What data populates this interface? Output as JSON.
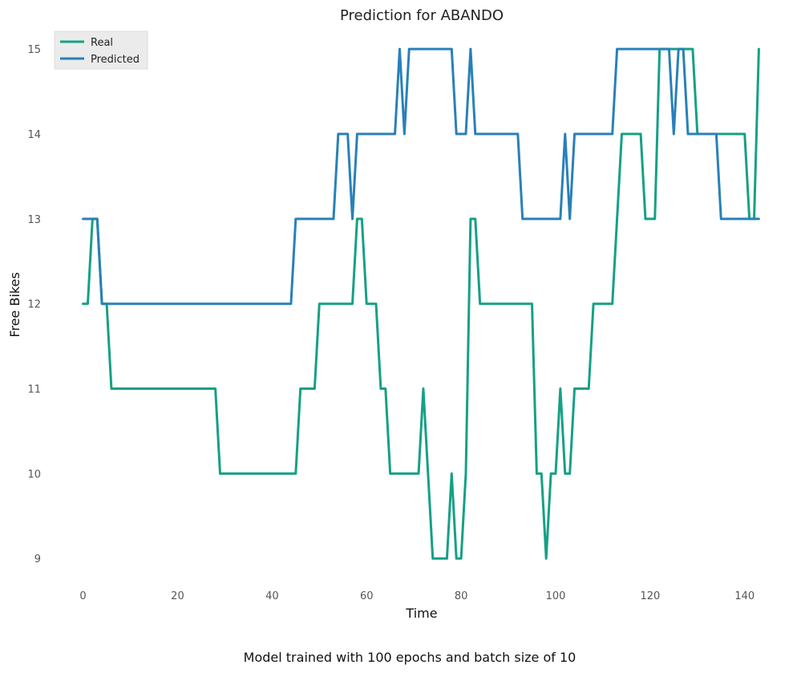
{
  "chart_data": {
    "type": "line",
    "title": "Prediction for ABANDO",
    "xlabel": "Time",
    "ylabel": "Free Bikes",
    "caption": "Model trained with 100 epochs and batch size of 10",
    "xlim": [
      -4,
      147
    ],
    "ylim": [
      8.7,
      15.2
    ],
    "xticks": [
      0,
      20,
      40,
      60,
      80,
      100,
      120,
      140
    ],
    "yticks": [
      9,
      10,
      11,
      12,
      13,
      14,
      15
    ],
    "grid": false,
    "legend_position": "top-left",
    "series": [
      {
        "name": "Real",
        "color": "#16a085",
        "x": [
          0,
          1,
          2,
          3,
          4,
          5,
          6,
          7,
          8,
          9,
          10,
          11,
          12,
          13,
          14,
          15,
          16,
          17,
          18,
          19,
          20,
          21,
          22,
          23,
          24,
          25,
          26,
          27,
          28,
          29,
          30,
          31,
          32,
          33,
          34,
          35,
          36,
          37,
          38,
          39,
          40,
          41,
          42,
          43,
          44,
          45,
          46,
          47,
          48,
          49,
          50,
          51,
          52,
          53,
          54,
          55,
          56,
          57,
          58,
          59,
          60,
          61,
          62,
          63,
          64,
          65,
          66,
          67,
          68,
          69,
          70,
          71,
          72,
          73,
          74,
          75,
          76,
          77,
          78,
          79,
          80,
          81,
          82,
          83,
          84,
          85,
          86,
          87,
          88,
          89,
          90,
          91,
          92,
          93,
          94,
          95,
          96,
          97,
          98,
          99,
          100,
          101,
          102,
          103,
          104,
          105,
          106,
          107,
          108,
          109,
          110,
          111,
          112,
          113,
          114,
          115,
          116,
          117,
          118,
          119,
          120,
          121,
          122,
          123,
          124,
          125,
          126,
          127,
          128,
          129,
          130,
          131,
          132,
          133,
          134,
          135,
          136,
          137,
          138,
          139,
          140,
          141,
          142,
          143
        ],
        "y": [
          12,
          12,
          13,
          13,
          12,
          12,
          11,
          11,
          11,
          11,
          11,
          11,
          11,
          11,
          11,
          11,
          11,
          11,
          11,
          11,
          11,
          11,
          11,
          11,
          11,
          11,
          11,
          11,
          11,
          10,
          10,
          10,
          10,
          10,
          10,
          10,
          10,
          10,
          10,
          10,
          10,
          10,
          10,
          10,
          10,
          10,
          11,
          11,
          11,
          11,
          12,
          12,
          12,
          12,
          12,
          12,
          12,
          12,
          13,
          13,
          12,
          12,
          12,
          11,
          11,
          10,
          10,
          10,
          10,
          10,
          10,
          10,
          11,
          10,
          9,
          9,
          9,
          9,
          10,
          9,
          9,
          10,
          13,
          13,
          12,
          12,
          12,
          12,
          12,
          12,
          12,
          12,
          12,
          12,
          12,
          12,
          10,
          10,
          9,
          10,
          10,
          11,
          10,
          10,
          11,
          11,
          11,
          11,
          12,
          12,
          12,
          12,
          12,
          13,
          14,
          14,
          14,
          14,
          14,
          13,
          13,
          13,
          15,
          15,
          15,
          15,
          15,
          15,
          15,
          15,
          14,
          14,
          14,
          14,
          14,
          14,
          14,
          14,
          14,
          14,
          14,
          13,
          13,
          15
        ]
      },
      {
        "name": "Predicted",
        "color": "#2980b9",
        "x": [
          0,
          1,
          2,
          3,
          4,
          5,
          6,
          7,
          8,
          9,
          10,
          11,
          12,
          13,
          14,
          15,
          16,
          17,
          18,
          19,
          20,
          21,
          22,
          23,
          24,
          25,
          26,
          27,
          28,
          29,
          30,
          31,
          32,
          33,
          34,
          35,
          36,
          37,
          38,
          39,
          40,
          41,
          42,
          43,
          44,
          45,
          46,
          47,
          48,
          49,
          50,
          51,
          52,
          53,
          54,
          55,
          56,
          57,
          58,
          59,
          60,
          61,
          62,
          63,
          64,
          65,
          66,
          67,
          68,
          69,
          70,
          71,
          72,
          73,
          74,
          75,
          76,
          77,
          78,
          79,
          80,
          81,
          82,
          83,
          84,
          85,
          86,
          87,
          88,
          89,
          90,
          91,
          92,
          93,
          94,
          95,
          96,
          97,
          98,
          99,
          100,
          101,
          102,
          103,
          104,
          105,
          106,
          107,
          108,
          109,
          110,
          111,
          112,
          113,
          114,
          115,
          116,
          117,
          118,
          119,
          120,
          121,
          122,
          123,
          124,
          125,
          126,
          127,
          128,
          129,
          130,
          131,
          132,
          133,
          134,
          135,
          136,
          137,
          138,
          139,
          140,
          141,
          142,
          143
        ],
        "y": [
          13,
          13,
          13,
          13,
          12,
          12,
          12,
          12,
          12,
          12,
          12,
          12,
          12,
          12,
          12,
          12,
          12,
          12,
          12,
          12,
          12,
          12,
          12,
          12,
          12,
          12,
          12,
          12,
          12,
          12,
          12,
          12,
          12,
          12,
          12,
          12,
          12,
          12,
          12,
          12,
          12,
          12,
          12,
          12,
          12,
          13,
          13,
          13,
          13,
          13,
          13,
          13,
          13,
          13,
          14,
          14,
          14,
          13,
          14,
          14,
          14,
          14,
          14,
          14,
          14,
          14,
          14,
          15,
          14,
          15,
          15,
          15,
          15,
          15,
          15,
          15,
          15,
          15,
          15,
          14,
          14,
          14,
          15,
          14,
          14,
          14,
          14,
          14,
          14,
          14,
          14,
          14,
          14,
          13,
          13,
          13,
          13,
          13,
          13,
          13,
          13,
          13,
          14,
          13,
          14,
          14,
          14,
          14,
          14,
          14,
          14,
          14,
          14,
          15,
          15,
          15,
          15,
          15,
          15,
          15,
          15,
          15,
          15,
          15,
          15,
          14,
          15,
          15,
          14,
          14,
          14,
          14,
          14,
          14,
          14,
          13,
          13,
          13,
          13,
          13,
          13,
          13,
          13,
          13
        ]
      }
    ]
  }
}
